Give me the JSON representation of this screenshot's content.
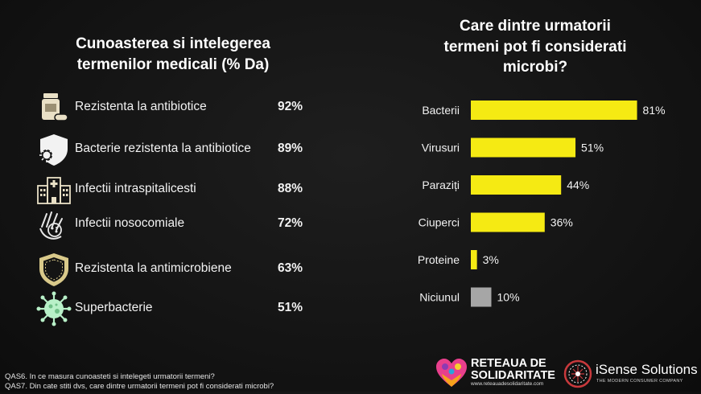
{
  "left_panel": {
    "title_line1": "Cunoasterea si intelegerea",
    "title_line2": "termenilor medicali (% Da)",
    "items": [
      {
        "label": "Rezistenta la antibiotice",
        "value": "92%",
        "icon": "pill-bottle-icon"
      },
      {
        "label": "Bacterie rezistenta la antibiotice",
        "value": "89%",
        "icon": "virus-shield-icon"
      },
      {
        "label": "Infectii intraspitalicesti",
        "value": "88%",
        "icon": "hospital-icon"
      },
      {
        "label": "Infectii nosocomiale",
        "value": "72%",
        "icon": "hand-germ-icon"
      },
      {
        "label": "Rezistenta la antimicrobiene",
        "value": "63%",
        "icon": "shield-icon"
      },
      {
        "label": "Superbacterie",
        "value": "51%",
        "icon": "bacteria-icon"
      }
    ]
  },
  "right_panel": {
    "title_line1": "Care dintre urmatorii",
    "title_line2": "termeni pot fi considerati",
    "title_line3": "microbi?"
  },
  "chart_data": {
    "type": "bar",
    "orientation": "horizontal",
    "title": "Care dintre urmatorii termeni pot fi considerati microbi?",
    "categories": [
      "Bacterii",
      "Virusuri",
      "Paraziți",
      "Ciuperci",
      "Proteine",
      "Niciunul"
    ],
    "values": [
      81,
      51,
      44,
      36,
      3,
      10
    ],
    "value_labels": [
      "81%",
      "51%",
      "44%",
      "36%",
      "3%",
      "10%"
    ],
    "unit": "%",
    "xlim": [
      0,
      100
    ],
    "grid": false,
    "colors": [
      "#f5ea13",
      "#f5ea13",
      "#f5ea13",
      "#f5ea13",
      "#f5ea13",
      "#a6a6a6"
    ]
  },
  "footnotes": {
    "q1": "QAS6. In ce masura cunoasteti si intelegeti urmatorii termeni?",
    "q2": "QAS7. Din cate stiti dvs, care dintre urmatorii termeni pot fi considerati microbi?"
  },
  "logos": {
    "reteaua_line1": "RETEAUA DE",
    "reteaua_line2": "SOLIDARITATE",
    "reteaua_url": "www.reteauadesolidaritate.com",
    "isense_name": "iSense Solutions",
    "isense_tagline": "THE MODERN CONSUMER COMPANY"
  },
  "colors": {
    "background": "#141414",
    "bar": "#f5ea13",
    "bar_none": "#a6a6a6",
    "icon_fill": "#e9e0c6",
    "icon_alt": "#b8f0c8"
  }
}
